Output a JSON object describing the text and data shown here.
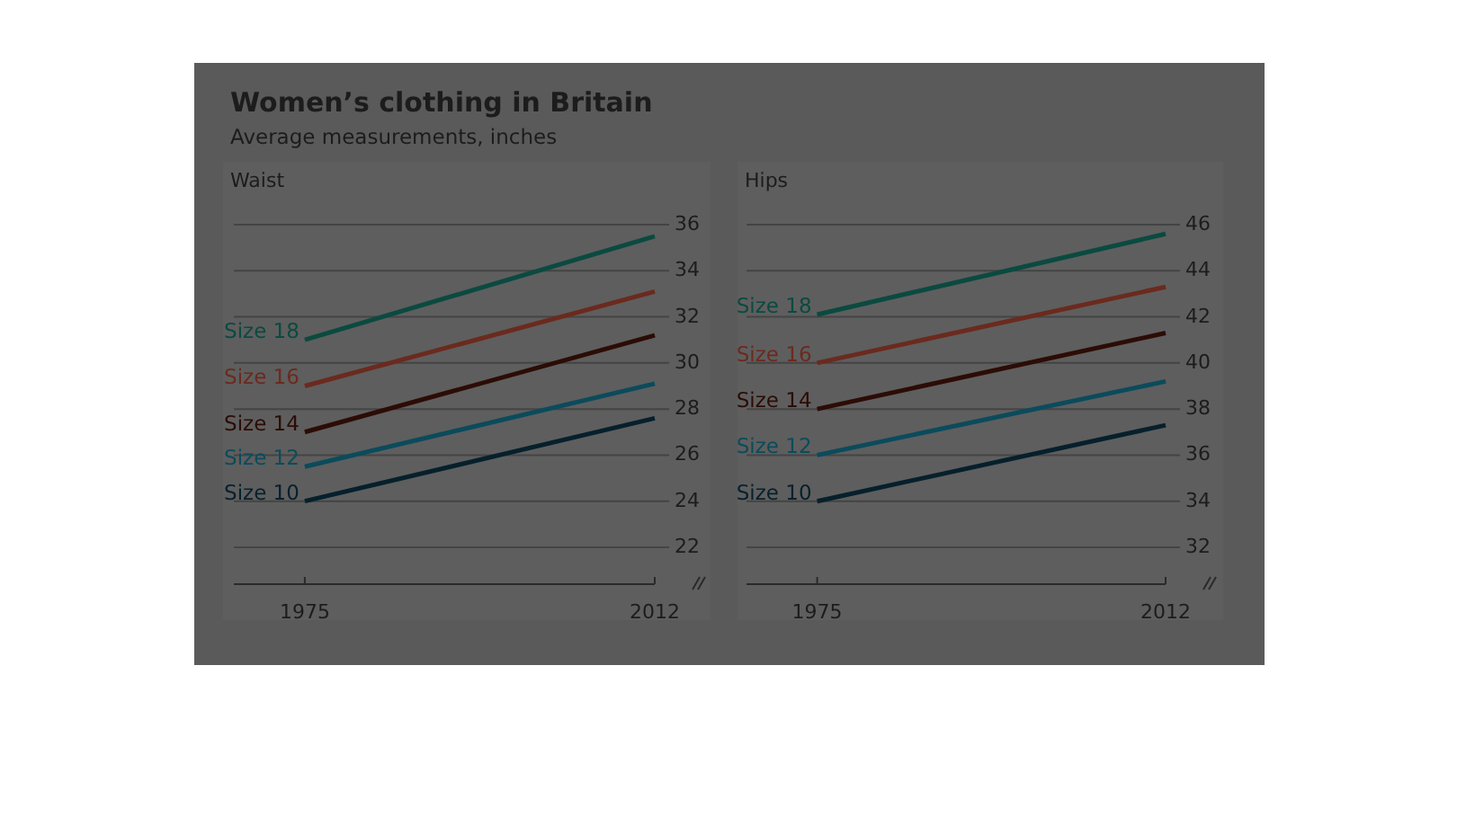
{
  "chart_data": [
    {
      "type": "line",
      "title": "Women’s clothing in Britain",
      "subtitle": "Average measurements, inches",
      "ylabel": "Waist",
      "x": [
        "1975",
        "2012"
      ],
      "xlim": [
        "1967-07",
        "2012"
      ],
      "xticks": [
        "1975",
        "2012"
      ],
      "ylim": [
        20.4,
        36
      ],
      "yticks": [
        22,
        24,
        26,
        28,
        30,
        32,
        34,
        36
      ],
      "grid": "y",
      "legend": false,
      "series": [
        {
          "name": "Size 18",
          "color": "#0b4a40",
          "values": [
            31.0,
            35.5
          ]
        },
        {
          "name": "Size 16",
          "color": "#6b2a1e",
          "values": [
            29.0,
            33.1
          ]
        },
        {
          "name": "Size 14",
          "color": "#2c0c06",
          "values": [
            27.0,
            31.2
          ]
        },
        {
          "name": "Size 12",
          "color": "#0b4b5c",
          "values": [
            25.5,
            29.1
          ]
        },
        {
          "name": "Size 10",
          "color": "#06202c",
          "values": [
            24.0,
            27.6
          ]
        }
      ]
    },
    {
      "type": "line",
      "ylabel": "Hips",
      "x": [
        "1975",
        "2012"
      ],
      "xlim": [
        "1967-07",
        "2012"
      ],
      "xticks": [
        "1975",
        "2012"
      ],
      "ylim": [
        30.4,
        46
      ],
      "yticks": [
        32,
        34,
        36,
        38,
        40,
        42,
        44,
        46
      ],
      "grid": "y",
      "legend": false,
      "series": [
        {
          "name": "Size 18",
          "color": "#0b4a40",
          "values": [
            42.1,
            45.6
          ]
        },
        {
          "name": "Size 16",
          "color": "#6b2a1e",
          "values": [
            40.0,
            43.3
          ]
        },
        {
          "name": "Size 14",
          "color": "#2c0c06",
          "values": [
            38.0,
            41.3
          ]
        },
        {
          "name": "Size 12",
          "color": "#0b4b5c",
          "values": [
            36.0,
            39.2
          ]
        },
        {
          "name": "Size 10",
          "color": "#06202c",
          "values": [
            34.0,
            37.3
          ]
        }
      ]
    }
  ]
}
